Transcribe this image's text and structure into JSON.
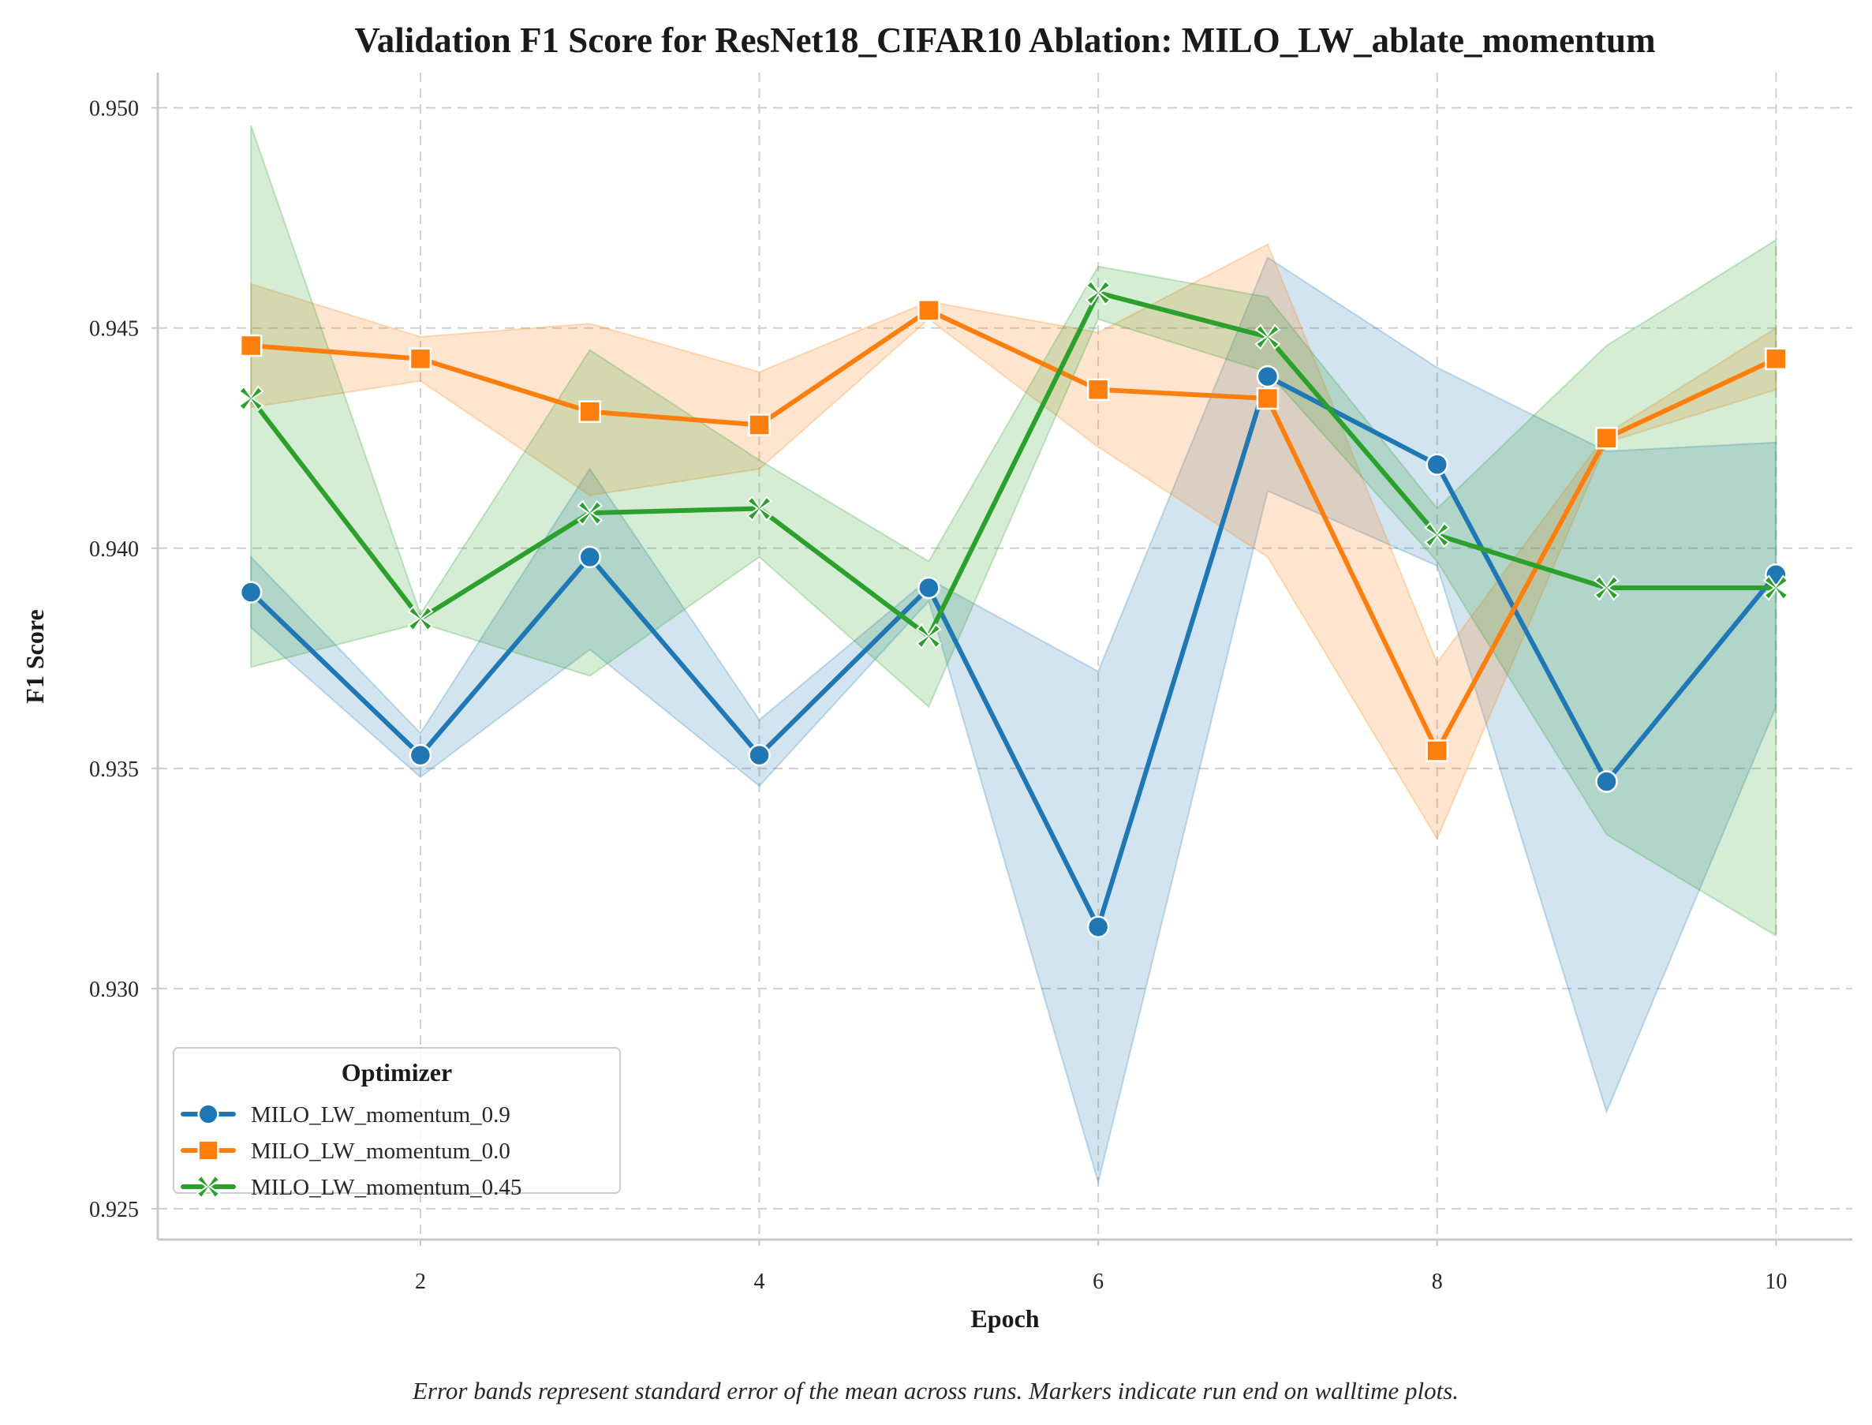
{
  "chart_data": {
    "type": "line",
    "title": "Validation F1 Score for ResNet18_CIFAR10 Ablation: MILO_LW_ablate_momentum",
    "xlabel": "Epoch",
    "ylabel": "F1 Score",
    "caption": "Error bands represent standard error of the mean across runs. Markers indicate run end on walltime plots.",
    "xlim": [
      0.45,
      10.45
    ],
    "ylim": [
      0.9243,
      0.9508
    ],
    "x_ticks": [
      2,
      4,
      6,
      8,
      10
    ],
    "x_tick_labels": [
      "2",
      "4",
      "6",
      "8",
      "10"
    ],
    "y_ticks": [
      0.925,
      0.93,
      0.935,
      0.94,
      0.945,
      0.95
    ],
    "y_tick_labels": [
      "0.925",
      "0.930",
      "0.935",
      "0.940",
      "0.945",
      "0.950"
    ],
    "grid": true,
    "legend": {
      "title": "Optimizer",
      "position": "lower-left"
    },
    "x": [
      1,
      2,
      3,
      4,
      5,
      6,
      7,
      8,
      9,
      10
    ],
    "series": [
      {
        "name": "MILO_LW_momentum_0.9",
        "color": "#1f77b4",
        "marker": "circle",
        "values": [
          0.939,
          0.9353,
          0.9398,
          0.9353,
          0.9391,
          0.9314,
          0.9439,
          0.9419,
          0.9347,
          0.9394
        ],
        "lower": [
          0.9382,
          0.9348,
          0.9377,
          0.9346,
          0.9388,
          0.9256,
          0.9413,
          0.9396,
          0.9272,
          0.9364
        ],
        "upper": [
          0.9398,
          0.9358,
          0.9418,
          0.9361,
          0.9393,
          0.9372,
          0.9466,
          0.9441,
          0.9422,
          0.9424
        ]
      },
      {
        "name": "MILO_LW_momentum_0.0",
        "color": "#ff7f0e",
        "marker": "square",
        "values": [
          0.9446,
          0.9443,
          0.9431,
          0.9428,
          0.9454,
          0.9436,
          0.9434,
          0.9354,
          0.9425,
          0.9443
        ],
        "lower": [
          0.9432,
          0.9438,
          0.9412,
          0.9418,
          0.9452,
          0.9423,
          0.9398,
          0.9334,
          0.9424,
          0.9436
        ],
        "upper": [
          0.946,
          0.9448,
          0.9451,
          0.944,
          0.9456,
          0.9449,
          0.9469,
          0.9374,
          0.9426,
          0.945
        ]
      },
      {
        "name": "MILO_LW_momentum_0.45",
        "color": "#2ca02c",
        "marker": "x",
        "values": [
          0.9434,
          0.9384,
          0.9408,
          0.9409,
          0.938,
          0.9458,
          0.9448,
          0.9403,
          0.9391,
          0.9391
        ],
        "lower": [
          0.9373,
          0.9383,
          0.9371,
          0.9398,
          0.9364,
          0.9452,
          0.944,
          0.9397,
          0.9335,
          0.9312
        ],
        "upper": [
          0.9496,
          0.9385,
          0.9445,
          0.942,
          0.9397,
          0.9464,
          0.9457,
          0.9409,
          0.9446,
          0.947
        ]
      }
    ]
  }
}
